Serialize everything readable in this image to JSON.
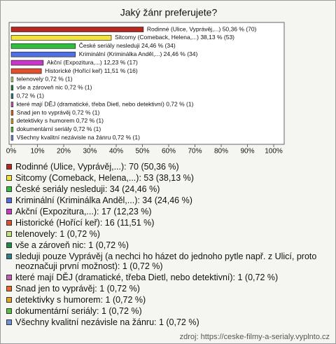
{
  "chart_data": {
    "type": "barh",
    "title": "Jaký žánr preferujete?",
    "values": [
      50.36,
      38.13,
      24.46,
      24.46,
      12.23,
      11.51,
      0.72,
      0.72,
      0.72,
      0.72,
      0.72,
      0.72,
      0.72,
      0.72
    ],
    "value_labels": [
      "Rodinné (Ulice, Vyprávěj,...) 50,36 % (70)",
      "Sitcomy (Comeback, Helena,...) 38,13 % (53)",
      "České seriály nesleduji 24,46 % (34)",
      "Kriminální (Kriminálka Anděl,...) 24,46 % (34)",
      "Akční (Expozitura,...) 12,23 % (17)",
      "Historické (Hořící keř) 11,51 % (16)",
      "telenovely 0,72 % (1)",
      "vše a zároveň nic 0,72 % (1)",
      "0,72 % (1)",
      "které mají DĚJ (dramatické, třeba Dietl, nebo detektivní) 0,72 % (1)",
      "Snad jen to vyprávěj 0,72 % (1)",
      "detektivky s humorem 0,72 % (1)",
      "dokumentární seriály 0,72 % (1)",
      "Všechny kvalitní nezávisle na žánru 0,72 % (1)"
    ],
    "colors": [
      "#b8281e",
      "#f2e23a",
      "#2fbf3c",
      "#4f6fe6",
      "#c936c9",
      "#e0502c",
      "#bfe27a",
      "#1f8a45",
      "#2f7f86",
      "#c45fb5",
      "#ee6a24",
      "#e4a422",
      "#56c23f",
      "#7090dc"
    ],
    "legend": [
      "Rodinné (Ulice, Vyprávěj,...): 70 (50,36 %)",
      "Sitcomy (Comeback, Helena,...): 53 (38,13 %)",
      "České seriály nesleduji: 34 (24,46 %)",
      "Kriminální (Kriminálka Anděl,...): 34 (24,46 %)",
      "Akční (Expozitura,...): 17 (12,23 %)",
      "Historické (Hořící keř): 16 (11,51 %)",
      "telenovely: 1 (0,72 %)",
      "vše a zároveň nic: 1 (0,72 %)",
      "sleduji pouze Vyprávěj (a nechci ho házet do jednoho pytle např. z Ulicí, proto neoznačuji první možnost): 1 (0,72 %)",
      "které mají DĚJ (dramatické, třeba Dietl, nebo detektivní): 1 (0,72 %)",
      "Snad jen to vyprávěj: 1 (0,72 %)",
      "detektivky s humorem: 1 (0,72 %)",
      "dokumentární seriály: 1 (0,72 %)",
      "Všechny kvalitní nezávisle na žánru: 1 (0,72 %)"
    ],
    "xlim": [
      0,
      100
    ],
    "xticks": [
      {
        "value": 0,
        "label": "0%"
      },
      {
        "value": 10,
        "label": "10%"
      },
      {
        "value": 20,
        "label": "20%"
      },
      {
        "value": 30,
        "label": "30%"
      },
      {
        "value": 40,
        "label": "40%"
      },
      {
        "value": 50,
        "label": "50%"
      },
      {
        "value": 60,
        "label": "60%"
      },
      {
        "value": 70,
        "label": "70%"
      },
      {
        "value": 80,
        "label": "80%"
      },
      {
        "value": 90,
        "label": "90%"
      },
      {
        "value": 100,
        "label": "100%"
      }
    ]
  },
  "source": "zdroj: https://ceske-filmy-a-serialy.vyplnto.cz"
}
